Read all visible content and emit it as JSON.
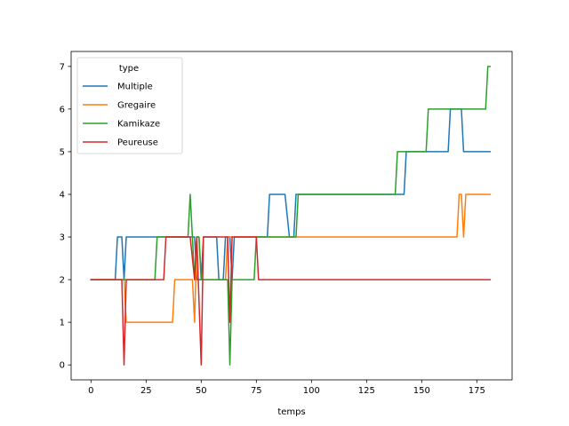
{
  "chart_data": {
    "type": "line",
    "xlabel": "temps",
    "ylabel": "",
    "xlim": [
      -9,
      191
    ],
    "ylim": [
      -0.35,
      7.35
    ],
    "xticks": [
      0,
      25,
      50,
      75,
      100,
      125,
      150,
      175
    ],
    "yticks": [
      0,
      1,
      2,
      3,
      4,
      5,
      6,
      7
    ],
    "grid": false,
    "legend": {
      "title": "type",
      "placement": "top-left"
    },
    "series": [
      {
        "name": "Multiple",
        "color": "#1f77b4",
        "points": [
          [
            0,
            2
          ],
          [
            11,
            2
          ],
          [
            12,
            3
          ],
          [
            14,
            3
          ],
          [
            15,
            2
          ],
          [
            16,
            3
          ],
          [
            47,
            3
          ],
          [
            48,
            2
          ],
          [
            50,
            2
          ],
          [
            51,
            3
          ],
          [
            57,
            3
          ],
          [
            58,
            2
          ],
          [
            60,
            2
          ],
          [
            61,
            3
          ],
          [
            63,
            3
          ],
          [
            64,
            2
          ],
          [
            65,
            3
          ],
          [
            80,
            3
          ],
          [
            81,
            4
          ],
          [
            88,
            4
          ],
          [
            90,
            3
          ],
          [
            92,
            3
          ],
          [
            93,
            4
          ],
          [
            115,
            4
          ],
          [
            116,
            4
          ],
          [
            142,
            4
          ],
          [
            143,
            5
          ],
          [
            162,
            5
          ],
          [
            163,
            6
          ],
          [
            168,
            6
          ],
          [
            169,
            5
          ],
          [
            181,
            5
          ]
        ]
      },
      {
        "name": "Gregaire",
        "color": "#ff7f0e",
        "points": [
          [
            0,
            2
          ],
          [
            15,
            2
          ],
          [
            16,
            1
          ],
          [
            37,
            1
          ],
          [
            38,
            2
          ],
          [
            46,
            2
          ],
          [
            47,
            1
          ],
          [
            48,
            3
          ],
          [
            49,
            3
          ],
          [
            50,
            2
          ],
          [
            60,
            2
          ],
          [
            61,
            2
          ],
          [
            62,
            3
          ],
          [
            97,
            3
          ],
          [
            98,
            3
          ],
          [
            166,
            3
          ],
          [
            167,
            4
          ],
          [
            168,
            4
          ],
          [
            169,
            3
          ],
          [
            170,
            4
          ],
          [
            181,
            4
          ]
        ]
      },
      {
        "name": "Kamikaze",
        "color": "#2ca02c",
        "points": [
          [
            0,
            2
          ],
          [
            29,
            2
          ],
          [
            30,
            3
          ],
          [
            44,
            3
          ],
          [
            45,
            4
          ],
          [
            46,
            3
          ],
          [
            47,
            2
          ],
          [
            48,
            3
          ],
          [
            49,
            3
          ],
          [
            50,
            2
          ],
          [
            62,
            2
          ],
          [
            63,
            0
          ],
          [
            64,
            2
          ],
          [
            74,
            2
          ],
          [
            75,
            3
          ],
          [
            93,
            3
          ],
          [
            94,
            4
          ],
          [
            138,
            4
          ],
          [
            139,
            5
          ],
          [
            152,
            5
          ],
          [
            153,
            6
          ],
          [
            179,
            6
          ],
          [
            180,
            7
          ],
          [
            181,
            7
          ]
        ]
      },
      {
        "name": "Peureuse",
        "color": "#d62728",
        "points": [
          [
            0,
            2
          ],
          [
            14,
            2
          ],
          [
            15,
            0
          ],
          [
            16,
            2
          ],
          [
            33,
            2
          ],
          [
            34,
            3
          ],
          [
            45,
            3
          ],
          [
            47,
            2
          ],
          [
            48,
            3
          ],
          [
            50,
            0
          ],
          [
            51,
            3
          ],
          [
            61,
            3
          ],
          [
            62,
            3
          ],
          [
            63,
            1
          ],
          [
            64,
            3
          ],
          [
            75,
            3
          ],
          [
            76,
            2
          ],
          [
            97,
            2
          ],
          [
            181,
            2
          ]
        ]
      }
    ]
  }
}
